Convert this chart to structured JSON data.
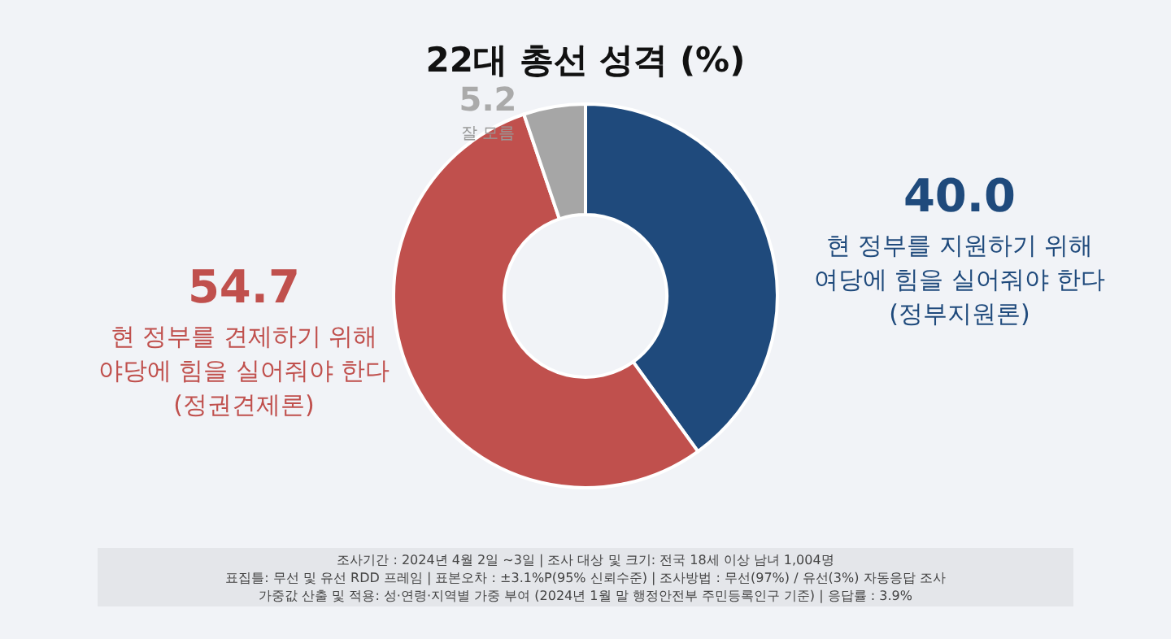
{
  "chart_data": {
    "type": "donut",
    "title": "22대 총선 성격 (%)",
    "categories": [
      "현 정부를 지원하기 위해\n여당에 힘을 실어줘야 한다\n(정부지원론)",
      "현 정부를 견제하기 위해\n야당에 힘을 실어줘야 한다\n(정권견제론)",
      "잘 모름"
    ],
    "values": [
      40.0,
      54.7,
      5.2
    ],
    "value_labels": [
      "40.0",
      "54.7",
      "5.2"
    ],
    "colors": [
      "#1f4a7c",
      "#c0504d",
      "#a6a6a6"
    ],
    "annotations": [
      "조사기간 : 2024년 4월 2일 ~3일 | 조사 대상 및 크기: 전국 18세 이상 남녀 1,004명",
      "표집틀: 무선 및 유선 RDD 프레임 | 표본오차 : ±3.1%P(95% 신뢰수준) | 조사방법 : 무선(97%) / 유선(3%) 자동응답 조사",
      "가중값 산출 및 적용: 성·연령·지역별 가중 부여 (2024년 1월 말 행정안전부 주민등록인구 기준) | 응답률 : 3.9%"
    ]
  }
}
